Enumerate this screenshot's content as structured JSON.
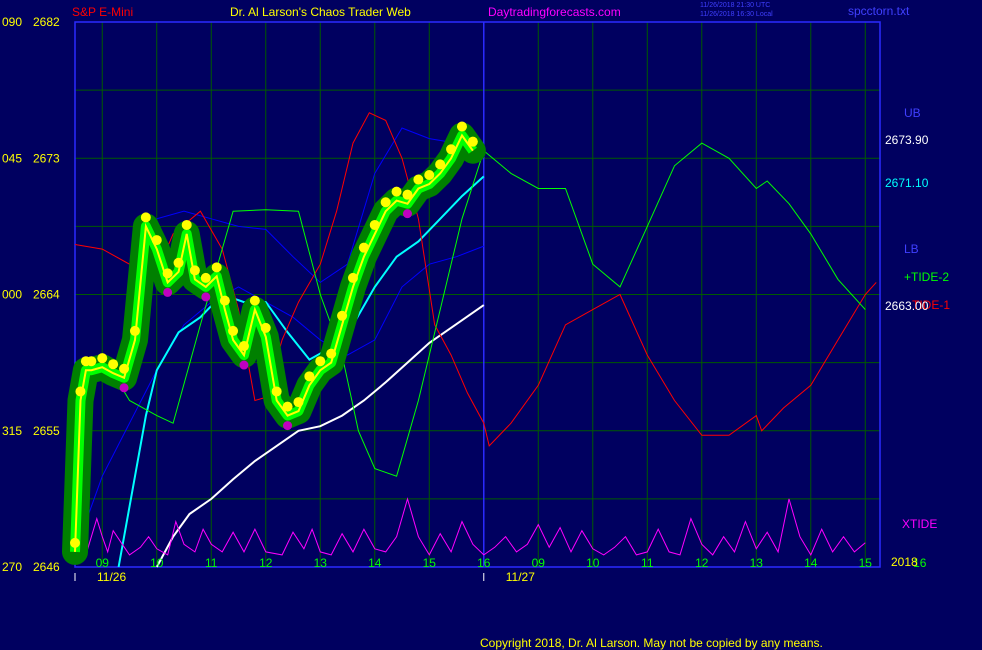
{
  "header": {
    "instrument": "S&P E-Mini",
    "title": "Dr. Al Larson's Chaos Trader Web",
    "site": "Daytradingforecasts.com",
    "utc_stamp": "11/26/2018 21:30 UTC",
    "local_stamp": "11/26/2018 16:30 Local",
    "file": "spcctorn.txt"
  },
  "footer": {
    "copyright": "Copyright 2018, Dr. Al Larson. May not be copied by any means."
  },
  "right_labels": {
    "ub": "UB",
    "ub_value": "2673.90",
    "mid_value": "2671.10",
    "lb": "LB",
    "tide2": "+TIDE-2",
    "tide1": "TIDE-1",
    "lb_value": "2663.00",
    "xtide": "XTIDE",
    "year": "2018"
  },
  "colors": {
    "background": "#000060",
    "grid": "#005a00",
    "frame": "#2b2bff",
    "price": "#00ff00",
    "ball": "#ffff00",
    "ball_low": "#c000c0",
    "tide1": "#ff0000",
    "tide2": "#00ff00",
    "cyan": "#00ffff",
    "white": "#ffffff",
    "blue": "#0000ff",
    "xtide": "#ff00ff",
    "yellow": "#ffff00"
  },
  "chart_data": {
    "type": "line",
    "y_axis": {
      "prefixes": [
        "090",
        "045",
        "000",
        "315",
        "270"
      ],
      "ticks": [
        2682,
        2673,
        2664,
        2655,
        2646
      ],
      "ylim": [
        2646,
        2682
      ]
    },
    "x_axis": {
      "hour_ticks": [
        "09",
        "10",
        "11",
        "12",
        "13",
        "14",
        "15",
        "16",
        "09",
        "10",
        "11",
        "12",
        "13",
        "14",
        "15",
        "16"
      ],
      "dates": [
        "11/26",
        "11/27"
      ]
    },
    "price_close": [
      [
        8.5,
        2647.0
      ],
      [
        8.6,
        2657.0
      ],
      [
        8.7,
        2659.0
      ],
      [
        8.8,
        2659.0
      ],
      [
        9.0,
        2659.2
      ],
      [
        9.2,
        2658.8
      ],
      [
        9.4,
        2658.5
      ],
      [
        9.6,
        2661.0
      ],
      [
        9.8,
        2668.5
      ],
      [
        10.0,
        2667.0
      ],
      [
        10.2,
        2664.8
      ],
      [
        10.4,
        2665.5
      ],
      [
        10.55,
        2668.0
      ],
      [
        10.7,
        2665.0
      ],
      [
        10.9,
        2664.5
      ],
      [
        11.1,
        2665.2
      ],
      [
        11.25,
        2663.0
      ],
      [
        11.4,
        2661.0
      ],
      [
        11.6,
        2660.0
      ],
      [
        11.8,
        2663.0
      ],
      [
        12.0,
        2661.2
      ],
      [
        12.2,
        2657.0
      ],
      [
        12.4,
        2656.0
      ],
      [
        12.6,
        2656.3
      ],
      [
        12.8,
        2658.0
      ],
      [
        13.0,
        2659.0
      ],
      [
        13.2,
        2659.5
      ],
      [
        13.4,
        2662.0
      ],
      [
        13.6,
        2664.5
      ],
      [
        13.8,
        2666.5
      ],
      [
        14.0,
        2668.0
      ],
      [
        14.2,
        2669.5
      ],
      [
        14.4,
        2670.2
      ],
      [
        14.6,
        2670.0
      ],
      [
        14.8,
        2671.0
      ],
      [
        15.0,
        2671.3
      ],
      [
        15.2,
        2672.0
      ],
      [
        15.4,
        2673.0
      ],
      [
        15.6,
        2674.5
      ],
      [
        15.8,
        2673.5
      ]
    ],
    "series": [
      {
        "name": "UB",
        "values": [
          [
            8.5,
            2659.4
          ],
          [
            8.8,
            2659.4
          ],
          [
            9.2,
            2659.0
          ],
          [
            9.5,
            2659.5
          ],
          [
            10.0,
            2669.0
          ],
          [
            10.5,
            2669.5
          ],
          [
            11.0,
            2669.0
          ],
          [
            11.5,
            2668.5
          ],
          [
            12.0,
            2668.3
          ],
          [
            12.5,
            2666.5
          ],
          [
            13.0,
            2664.8
          ],
          [
            13.5,
            2666.0
          ],
          [
            14.0,
            2672.0
          ],
          [
            14.5,
            2675.0
          ],
          [
            15.0,
            2674.3
          ],
          [
            15.5,
            2674.0
          ],
          [
            16.0,
            2673.6
          ]
        ]
      },
      {
        "name": "LB",
        "values": [
          [
            8.5,
            2647.0
          ],
          [
            9.0,
            2652.0
          ],
          [
            9.5,
            2655.5
          ],
          [
            10.0,
            2659.0
          ],
          [
            10.5,
            2662.0
          ],
          [
            11.0,
            2663.5
          ],
          [
            11.5,
            2664.5
          ],
          [
            12.0,
            2663.5
          ],
          [
            12.5,
            2662.5
          ],
          [
            13.0,
            2661.0
          ],
          [
            13.5,
            2660.0
          ],
          [
            14.0,
            2661.0
          ],
          [
            14.5,
            2664.5
          ],
          [
            15.0,
            2666.0
          ],
          [
            15.5,
            2666.5
          ],
          [
            16.0,
            2667.2
          ]
        ]
      },
      {
        "name": "cyan",
        "values": [
          [
            9.3,
            2646.0
          ],
          [
            9.6,
            2652.0
          ],
          [
            9.8,
            2656.0
          ],
          [
            10.0,
            2659.0
          ],
          [
            10.4,
            2661.5
          ],
          [
            10.8,
            2662.5
          ],
          [
            11.2,
            2664.0
          ],
          [
            11.6,
            2663.5
          ],
          [
            12.0,
            2663.5
          ],
          [
            12.4,
            2661.5
          ],
          [
            12.8,
            2659.7
          ],
          [
            13.2,
            2660.5
          ],
          [
            13.6,
            2662.0
          ],
          [
            14.0,
            2664.5
          ],
          [
            14.4,
            2666.5
          ],
          [
            14.8,
            2667.5
          ],
          [
            15.2,
            2669.0
          ],
          [
            15.6,
            2670.5
          ],
          [
            16.0,
            2671.8
          ]
        ]
      },
      {
        "name": "white",
        "values": [
          [
            10.0,
            2646.0
          ],
          [
            10.3,
            2648.0
          ],
          [
            10.6,
            2649.5
          ],
          [
            11.0,
            2650.5
          ],
          [
            11.4,
            2651.8
          ],
          [
            11.8,
            2653.0
          ],
          [
            12.2,
            2654.0
          ],
          [
            12.6,
            2655.0
          ],
          [
            13.0,
            2655.3
          ],
          [
            13.4,
            2656.0
          ],
          [
            13.8,
            2657.0
          ],
          [
            14.2,
            2658.2
          ],
          [
            14.6,
            2659.5
          ],
          [
            15.0,
            2660.8
          ],
          [
            15.4,
            2661.8
          ],
          [
            16.0,
            2663.3
          ]
        ]
      },
      {
        "name": "TIDE-1",
        "values": [
          [
            8.5,
            2667.3
          ],
          [
            9.0,
            2667.0
          ],
          [
            9.5,
            2666.0
          ],
          [
            10.0,
            2665.5
          ],
          [
            10.3,
            2668.0
          ],
          [
            10.8,
            2669.5
          ],
          [
            11.2,
            2667.0
          ],
          [
            11.5,
            2663.0
          ],
          [
            11.8,
            2657.0
          ],
          [
            12.0,
            2657.2
          ],
          [
            12.3,
            2661.0
          ],
          [
            12.6,
            2663.5
          ],
          [
            13.0,
            2666.0
          ],
          [
            13.3,
            2669.5
          ],
          [
            13.6,
            2674.0
          ],
          [
            13.9,
            2676.0
          ],
          [
            14.2,
            2675.5
          ],
          [
            14.5,
            2673.0
          ],
          [
            14.8,
            2669.0
          ],
          [
            15.1,
            2662.0
          ],
          [
            15.4,
            2660.0
          ],
          [
            15.7,
            2657.5
          ],
          [
            16.0,
            2655.5
          ],
          [
            16.1,
            2654.0
          ],
          [
            16.5,
            2655.5
          ],
          [
            17.0,
            2658.0
          ],
          [
            17.5,
            2662.0
          ],
          [
            18.0,
            2663.0
          ],
          [
            18.5,
            2664.0
          ],
          [
            19.0,
            2660.0
          ],
          [
            19.5,
            2657.0
          ],
          [
            20.0,
            2654.7
          ],
          [
            20.5,
            2654.7
          ],
          [
            21.0,
            2656.0
          ],
          [
            21.1,
            2655.0
          ],
          [
            21.5,
            2656.5
          ],
          [
            22.0,
            2658.0
          ],
          [
            22.5,
            2661.0
          ],
          [
            23.0,
            2664.0
          ],
          [
            23.2,
            2664.8
          ]
        ]
      },
      {
        "name": "+TIDE-2",
        "values": [
          [
            8.5,
            2659.5
          ],
          [
            9.0,
            2660.0
          ],
          [
            9.5,
            2657.0
          ],
          [
            10.0,
            2656.0
          ],
          [
            10.3,
            2655.5
          ],
          [
            10.8,
            2662.0
          ],
          [
            11.4,
            2669.5
          ],
          [
            12.0,
            2669.6
          ],
          [
            12.6,
            2669.5
          ],
          [
            13.0,
            2664.0
          ],
          [
            13.4,
            2660.0
          ],
          [
            13.7,
            2655.0
          ],
          [
            14.0,
            2652.5
          ],
          [
            14.4,
            2652.0
          ],
          [
            14.8,
            2657.0
          ],
          [
            15.2,
            2663.0
          ],
          [
            15.6,
            2669.0
          ],
          [
            16.0,
            2673.5
          ],
          [
            16.5,
            2672.0
          ],
          [
            17.0,
            2671.0
          ],
          [
            17.5,
            2671.0
          ],
          [
            18.0,
            2666.0
          ],
          [
            18.5,
            2664.5
          ],
          [
            19.0,
            2668.5
          ],
          [
            19.5,
            2672.5
          ],
          [
            20.0,
            2674.0
          ],
          [
            20.5,
            2673.0
          ],
          [
            21.0,
            2671.0
          ],
          [
            21.2,
            2671.5
          ],
          [
            21.6,
            2670.0
          ],
          [
            22.0,
            2668.0
          ],
          [
            22.5,
            2665.0
          ],
          [
            23.0,
            2663.0
          ]
        ]
      },
      {
        "name": "XTIDE",
        "values": [
          [
            8.5,
            2647.3
          ],
          [
            8.7,
            2646.8
          ],
          [
            8.9,
            2649.2
          ],
          [
            9.0,
            2648.0
          ],
          [
            9.1,
            2647.0
          ],
          [
            9.2,
            2648.4
          ],
          [
            9.35,
            2647.6
          ],
          [
            9.5,
            2646.8
          ],
          [
            9.7,
            2647.3
          ],
          [
            9.85,
            2648.0
          ],
          [
            10.0,
            2647.2
          ],
          [
            10.2,
            2646.8
          ],
          [
            10.35,
            2649.0
          ],
          [
            10.5,
            2647.5
          ],
          [
            10.7,
            2647.0
          ],
          [
            10.85,
            2648.5
          ],
          [
            11.0,
            2647.5
          ],
          [
            11.2,
            2647.0
          ],
          [
            11.4,
            2648.3
          ],
          [
            11.6,
            2647.0
          ],
          [
            11.8,
            2648.5
          ],
          [
            12.0,
            2647.0
          ],
          [
            12.3,
            2646.8
          ],
          [
            12.5,
            2648.3
          ],
          [
            12.7,
            2647.2
          ],
          [
            12.85,
            2648.5
          ],
          [
            13.0,
            2647.0
          ],
          [
            13.2,
            2646.8
          ],
          [
            13.4,
            2648.2
          ],
          [
            13.6,
            2647.0
          ],
          [
            13.8,
            2648.5
          ],
          [
            14.0,
            2647.2
          ],
          [
            14.2,
            2647.0
          ],
          [
            14.4,
            2648.0
          ],
          [
            14.6,
            2650.5
          ],
          [
            14.8,
            2648.0
          ],
          [
            15.0,
            2646.8
          ],
          [
            15.2,
            2648.2
          ],
          [
            15.4,
            2647.0
          ],
          [
            15.6,
            2649.0
          ],
          [
            15.8,
            2647.5
          ],
          [
            16.0,
            2646.8
          ],
          [
            16.2,
            2647.3
          ],
          [
            16.4,
            2648.0
          ],
          [
            16.6,
            2647.0
          ],
          [
            16.8,
            2647.5
          ],
          [
            17.0,
            2648.8
          ],
          [
            17.2,
            2647.3
          ],
          [
            17.4,
            2648.6
          ],
          [
            17.6,
            2647.0
          ],
          [
            17.8,
            2648.4
          ],
          [
            18.0,
            2647.2
          ],
          [
            18.2,
            2646.8
          ],
          [
            18.4,
            2647.3
          ],
          [
            18.6,
            2648.0
          ],
          [
            18.8,
            2646.8
          ],
          [
            19.0,
            2647.0
          ],
          [
            19.2,
            2648.5
          ],
          [
            19.4,
            2647.0
          ],
          [
            19.6,
            2646.8
          ],
          [
            19.8,
            2649.2
          ],
          [
            20.0,
            2647.5
          ],
          [
            20.2,
            2646.8
          ],
          [
            20.4,
            2648.0
          ],
          [
            20.6,
            2647.0
          ],
          [
            20.8,
            2649.0
          ],
          [
            21.0,
            2647.2
          ],
          [
            21.2,
            2648.3
          ],
          [
            21.4,
            2647.0
          ],
          [
            21.6,
            2650.5
          ],
          [
            21.8,
            2648.0
          ],
          [
            22.0,
            2646.8
          ],
          [
            22.2,
            2648.5
          ],
          [
            22.4,
            2647.0
          ],
          [
            22.6,
            2648.0
          ],
          [
            22.8,
            2647.0
          ],
          [
            23.0,
            2647.6
          ]
        ]
      }
    ]
  }
}
